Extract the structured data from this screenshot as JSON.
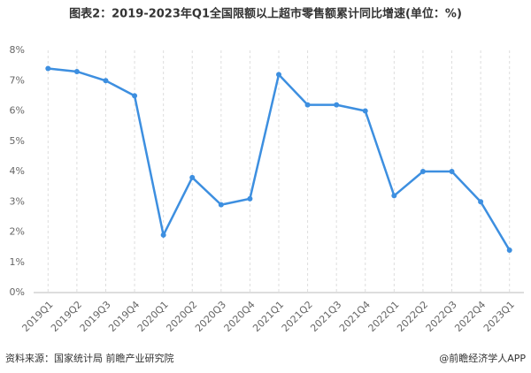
{
  "chart_data": {
    "type": "line",
    "title": "图表2：2019-2023年Q1全国限额以上超市零售额累计同比增速(单位：%)",
    "categories": [
      "2019Q1",
      "2019Q2",
      "2019Q3",
      "2019Q4",
      "2020Q1",
      "2020Q2",
      "2020Q3",
      "2020Q4",
      "2021Q1",
      "2021Q2",
      "2021Q3",
      "2021Q4",
      "2022Q1",
      "2022Q2",
      "2022Q3",
      "2022Q4",
      "2023Q1"
    ],
    "values": [
      7.4,
      7.3,
      7.0,
      6.5,
      1.9,
      3.8,
      2.9,
      3.1,
      7.2,
      6.2,
      6.2,
      6.0,
      3.2,
      4.0,
      4.0,
      3.0,
      1.4
    ],
    "color": "#3d8fe0",
    "ylim": [
      0,
      8
    ],
    "yticks": [
      {
        "value": 0,
        "label": "0%"
      },
      {
        "value": 1,
        "label": "1%"
      },
      {
        "value": 2,
        "label": "2%"
      },
      {
        "value": 3,
        "label": "3%"
      },
      {
        "value": 4,
        "label": "4%"
      },
      {
        "value": 5,
        "label": "5%"
      },
      {
        "value": 6,
        "label": "6%"
      },
      {
        "value": 7,
        "label": "7%"
      },
      {
        "value": 8,
        "label": "8%"
      }
    ],
    "grid": true,
    "source": "资料来源：国家统计局 前瞻产业研究院",
    "credit": "@前瞻经济学人APP"
  }
}
